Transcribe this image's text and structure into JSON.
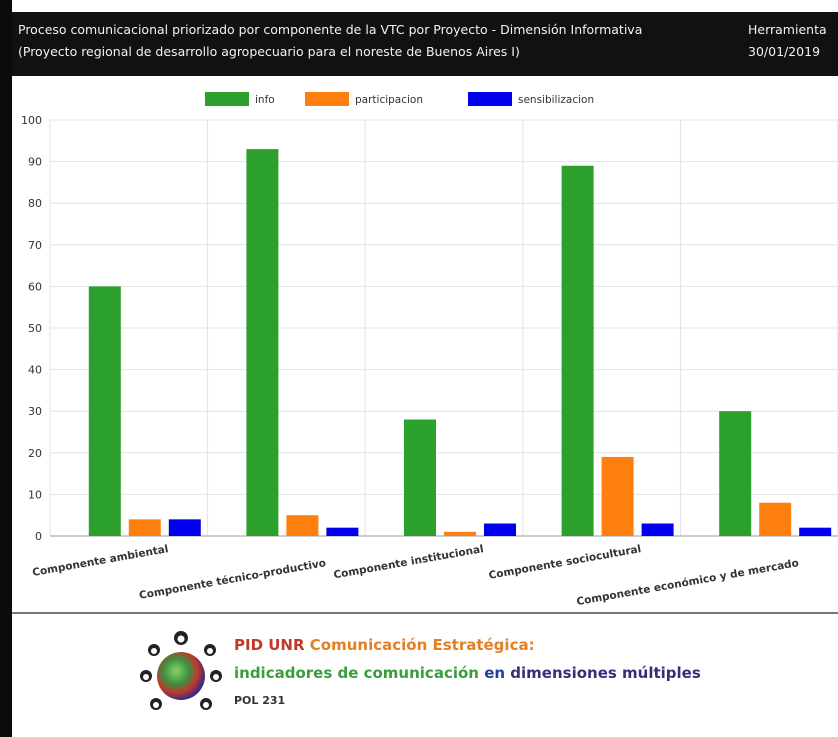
{
  "header": {
    "title_line1": "Proceso comunicacional priorizado por componente de la VTC por Proyecto - Dimensión Informativa",
    "title_line2": "(Proyecto regional de desarrollo agropecuario para el noreste de Buenos Aires I)",
    "right_line1": "Herramienta",
    "right_line2": "30/01/2019"
  },
  "chart_data": {
    "type": "bar",
    "categories": [
      "Componente ambiental",
      "Componente técnico-productivo",
      "Componente institucional",
      "Componente sociocultural",
      "Componente económico y de mercado"
    ],
    "series": [
      {
        "name": "info",
        "color": "#2ca02c",
        "values": [
          60,
          93,
          28,
          89,
          30
        ]
      },
      {
        "name": "participacion",
        "color": "#ff7f0e",
        "values": [
          4,
          5,
          1,
          19,
          8
        ]
      },
      {
        "name": "sensibilizacion",
        "color": "#0000ee",
        "values": [
          4,
          2,
          3,
          3,
          2
        ]
      }
    ],
    "ylim": [
      0,
      100
    ],
    "yticks": [
      0,
      10,
      20,
      30,
      40,
      50,
      60,
      70,
      80,
      90,
      100
    ],
    "grid": true,
    "legend": "top-center"
  },
  "footer": {
    "line1_a": "PID UNR",
    "line1_b": "Comunicación Estratégica:",
    "line2_a": "indicadores de comunicación",
    "line2_b": "en",
    "line2_c": "dimensiones múltiples",
    "line3": "POL 231"
  }
}
